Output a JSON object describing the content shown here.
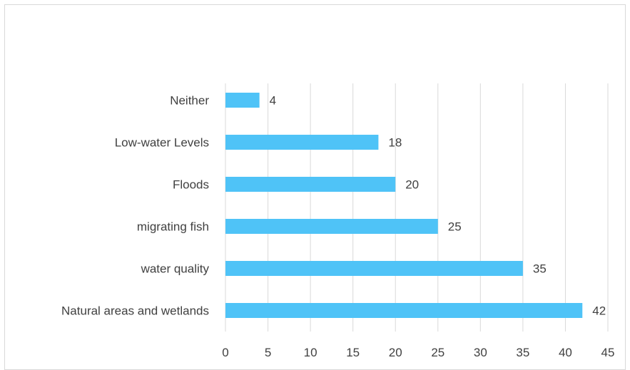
{
  "chart_data": {
    "type": "bar",
    "orientation": "horizontal",
    "title": "",
    "xlabel": "",
    "ylabel": "",
    "categories": [
      "Neither",
      "Low-water Levels",
      "Floods",
      "migrating fish",
      "water quality",
      "Natural areas and wetlands"
    ],
    "values": [
      4,
      18,
      20,
      25,
      35,
      42
    ],
    "xlim": [
      0,
      45
    ],
    "x_ticks": [
      "0",
      "5",
      "10",
      "15",
      "20",
      "25",
      "30",
      "35",
      "40",
      "45"
    ],
    "grid": "vertical",
    "legend": "none",
    "colors": {
      "bar": "#4fc3f7",
      "grid": "#d9d9d9",
      "text": "#404040",
      "border": "#d9d9d9"
    }
  }
}
